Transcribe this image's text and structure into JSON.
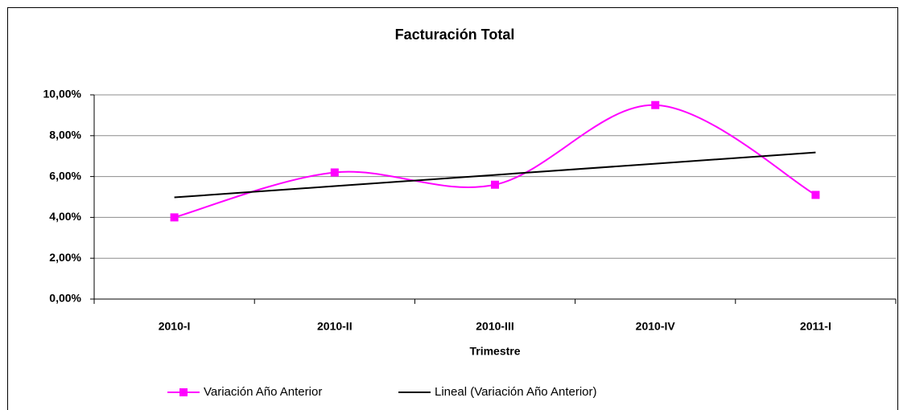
{
  "chart_data": {
    "type": "line",
    "title": "Facturación Total",
    "xlabel": "Trimestre",
    "categories": [
      "2010-I",
      "2010-II",
      "2010-III",
      "2010-IV",
      "2011-I"
    ],
    "series": [
      {
        "name": "Variación Año Anterior",
        "color": "#ff00ff",
        "smooth": true,
        "marker": "square",
        "values": [
          4.0,
          6.2,
          5.6,
          9.5,
          5.1
        ]
      },
      {
        "name": "Lineal (Variación Año Anterior)",
        "color": "#000000",
        "smooth": false,
        "values": [
          4.98,
          5.53,
          6.08,
          6.63,
          7.18
        ]
      }
    ],
    "ylim": [
      0,
      10
    ],
    "yticks": [
      {
        "value": 0,
        "label": "0,00%"
      },
      {
        "value": 2,
        "label": "2,00%"
      },
      {
        "value": 4,
        "label": "4,00%"
      },
      {
        "value": 6,
        "label": "6,00%"
      },
      {
        "value": 8,
        "label": "8,00%"
      },
      {
        "value": 10,
        "label": "10,00%"
      }
    ],
    "grid": true,
    "legend": "bottom"
  }
}
